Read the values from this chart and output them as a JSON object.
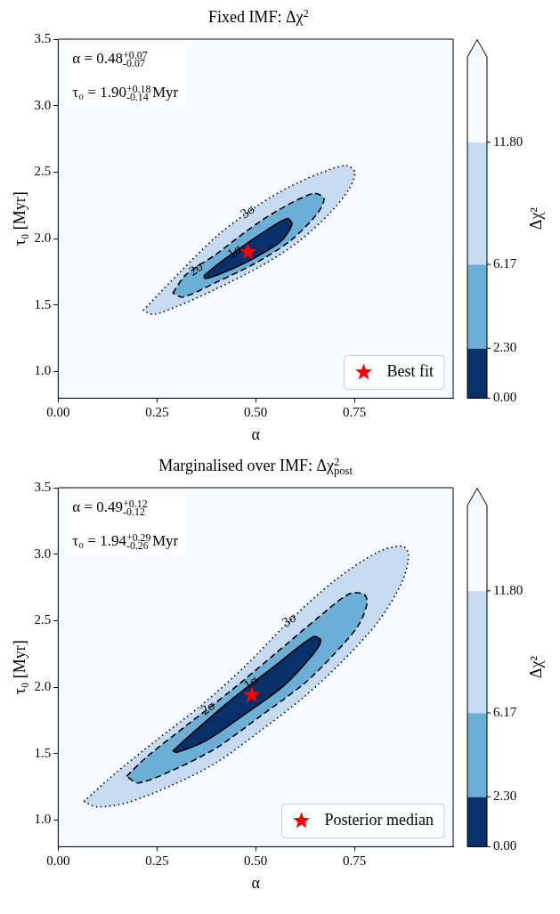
{
  "chart_data": [
    {
      "type": "area",
      "title": "Fixed IMF: Δχ$^{2}$",
      "xlabel": "α",
      "ylabel": "τ₀ [Myr]",
      "clabel": "Δχ²",
      "xlim": [
        0,
        1
      ],
      "ylim": [
        0.8,
        3.5
      ],
      "xticks": [
        {
          "value": 0,
          "label": "0.00"
        },
        {
          "value": 0.25,
          "label": "0.25"
        },
        {
          "value": 0.5,
          "label": "0.50"
        },
        {
          "value": 0.75,
          "label": "0.75"
        }
      ],
      "yticks": [
        {
          "value": 1,
          "label": "1.0"
        },
        {
          "value": 1.5,
          "label": "1.5"
        },
        {
          "value": 2,
          "label": "2.0"
        },
        {
          "value": 2.5,
          "label": "2.5"
        },
        {
          "value": 3,
          "label": "3.0"
        },
        {
          "value": 3.5,
          "label": "3.5"
        }
      ],
      "cticks": [
        {
          "value": 0,
          "label": "0.00"
        },
        {
          "value": 2.3,
          "label": "2.30"
        },
        {
          "value": 6.17,
          "label": "6.17"
        },
        {
          "value": 11.8,
          "label": "11.80"
        }
      ],
      "colors": [
        "#08306b",
        "#6baed6",
        "#c6dbef",
        "#f7fbff"
      ],
      "legend": "bottom right",
      "series": [
        {
          "type": "area",
          "color": "#c6dbef",
          "line_style": "dotted",
          "x": [
            0.215,
            0.309,
            0.406,
            0.511,
            0.586,
            0.661,
            0.729,
            0.751,
            0.736,
            0.684,
            0.601,
            0.511,
            0.399,
            0.301,
            0.241
          ],
          "values": [
            1.46,
            1.75,
            2.03,
            2.26,
            2.39,
            2.49,
            2.55,
            2.5,
            2.37,
            2.18,
            1.96,
            1.79,
            1.62,
            1.49,
            1.43
          ]
        },
        {
          "type": "area",
          "color": "#6baed6",
          "line_style": "dashed",
          "x": [
            0.29,
            0.324,
            0.399,
            0.474,
            0.549,
            0.646,
            0.673,
            0.654,
            0.586,
            0.496,
            0.406,
            0.316
          ],
          "values": [
            1.59,
            1.73,
            1.88,
            2.05,
            2.2,
            2.34,
            2.3,
            2.18,
            1.98,
            1.81,
            1.68,
            1.56
          ]
        },
        {
          "type": "area",
          "color": "#08306b",
          "line_style": "solid",
          "x": [
            0.369,
            0.406,
            0.466,
            0.526,
            0.579,
            0.592,
            0.564,
            0.481,
            0.406,
            0.372
          ],
          "values": [
            1.72,
            1.81,
            1.94,
            2.06,
            2.15,
            2.11,
            1.98,
            1.83,
            1.73,
            1.7
          ]
        },
        {
          "type": "scatter",
          "name": "Best fit",
          "color": "#ff0000",
          "marker": "star",
          "x": [
            0.48
          ],
          "values": [
            1.9
          ]
        }
      ],
      "annotations": [
        "α = 0.48$^{+0.07}$$_{-0.07}$",
        "τ₀ = 1.90$^{+0.18}$$_{-0.14}$ Myr",
        {
          "text": "1σ",
          "x": 0.447,
          "y": 1.9
        },
        {
          "text": "2σ",
          "x": 0.35,
          "y": 1.77
        },
        {
          "text": "3σ",
          "x": 0.481,
          "y": 2.2
        }
      ]
    },
    {
      "type": "area",
      "title": "Marginalised over IMF: Δχ$^{2}$$_{post}$",
      "xlabel": "α",
      "ylabel": "τ₀ [Myr]",
      "clabel": "Δχ²",
      "xlim": [
        0,
        1
      ],
      "ylim": [
        0.8,
        3.5
      ],
      "xticks": [
        {
          "value": 0,
          "label": "0.00"
        },
        {
          "value": 0.25,
          "label": "0.25"
        },
        {
          "value": 0.5,
          "label": "0.50"
        },
        {
          "value": 0.75,
          "label": "0.75"
        }
      ],
      "yticks": [
        {
          "value": 1,
          "label": "1.0"
        },
        {
          "value": 1.5,
          "label": "1.5"
        },
        {
          "value": 2,
          "label": "2.0"
        },
        {
          "value": 2.5,
          "label": "2.5"
        },
        {
          "value": 3,
          "label": "3.0"
        },
        {
          "value": 3.5,
          "label": "3.5"
        }
      ],
      "cticks": [
        {
          "value": 0,
          "label": "0.00"
        },
        {
          "value": 2.3,
          "label": "2.30"
        },
        {
          "value": 6.17,
          "label": "6.17"
        },
        {
          "value": 11.8,
          "label": "11.80"
        }
      ],
      "colors": [
        "#08306b",
        "#6baed6",
        "#c6dbef",
        "#f7fbff"
      ],
      "legend": "bottom right",
      "series": [
        {
          "type": "area",
          "color": "#c6dbef",
          "line_style": "dotted",
          "x": [
            0.065,
            0.136,
            0.248,
            0.361,
            0.474,
            0.586,
            0.699,
            0.812,
            0.872,
            0.887,
            0.872,
            0.812,
            0.721,
            0.624,
            0.511,
            0.399,
            0.286,
            0.173,
            0.098
          ],
          "values": [
            1.14,
            1.33,
            1.6,
            1.86,
            2.16,
            2.5,
            2.8,
            3.02,
            3.06,
            3.0,
            2.8,
            2.5,
            2.2,
            1.93,
            1.67,
            1.43,
            1.26,
            1.13,
            1.1
          ]
        },
        {
          "type": "area",
          "color": "#6baed6",
          "line_style": "dashed",
          "x": [
            0.173,
            0.226,
            0.324,
            0.436,
            0.549,
            0.661,
            0.736,
            0.774,
            0.782,
            0.759,
            0.699,
            0.624,
            0.511,
            0.399,
            0.286,
            0.203
          ],
          "values": [
            1.33,
            1.48,
            1.71,
            1.97,
            2.25,
            2.53,
            2.7,
            2.7,
            2.63,
            2.46,
            2.25,
            2.03,
            1.78,
            1.54,
            1.37,
            1.28
          ]
        },
        {
          "type": "area",
          "color": "#08306b",
          "line_style": "solid",
          "x": [
            0.29,
            0.346,
            0.436,
            0.549,
            0.646,
            0.665,
            0.646,
            0.571,
            0.474,
            0.376,
            0.301
          ],
          "values": [
            1.52,
            1.67,
            1.9,
            2.16,
            2.38,
            2.35,
            2.25,
            2.01,
            1.8,
            1.6,
            1.51
          ]
        },
        {
          "type": "scatter",
          "name": "Posterior median",
          "color": "#ff0000",
          "marker": "star",
          "x": [
            0.49
          ],
          "values": [
            1.94
          ]
        }
      ],
      "annotations": [
        "α = 0.49$^{+0.12}$$_{-0.12}$",
        "τ₀ = 1.94$^{+0.29}$$_{-0.26}$ Myr",
        {
          "text": "1σ",
          "x": 0.489,
          "y": 2.03
        },
        {
          "text": "2σ",
          "x": 0.38,
          "y": 1.84
        },
        {
          "text": "3σ",
          "x": 0.586,
          "y": 2.5
        }
      ]
    }
  ]
}
